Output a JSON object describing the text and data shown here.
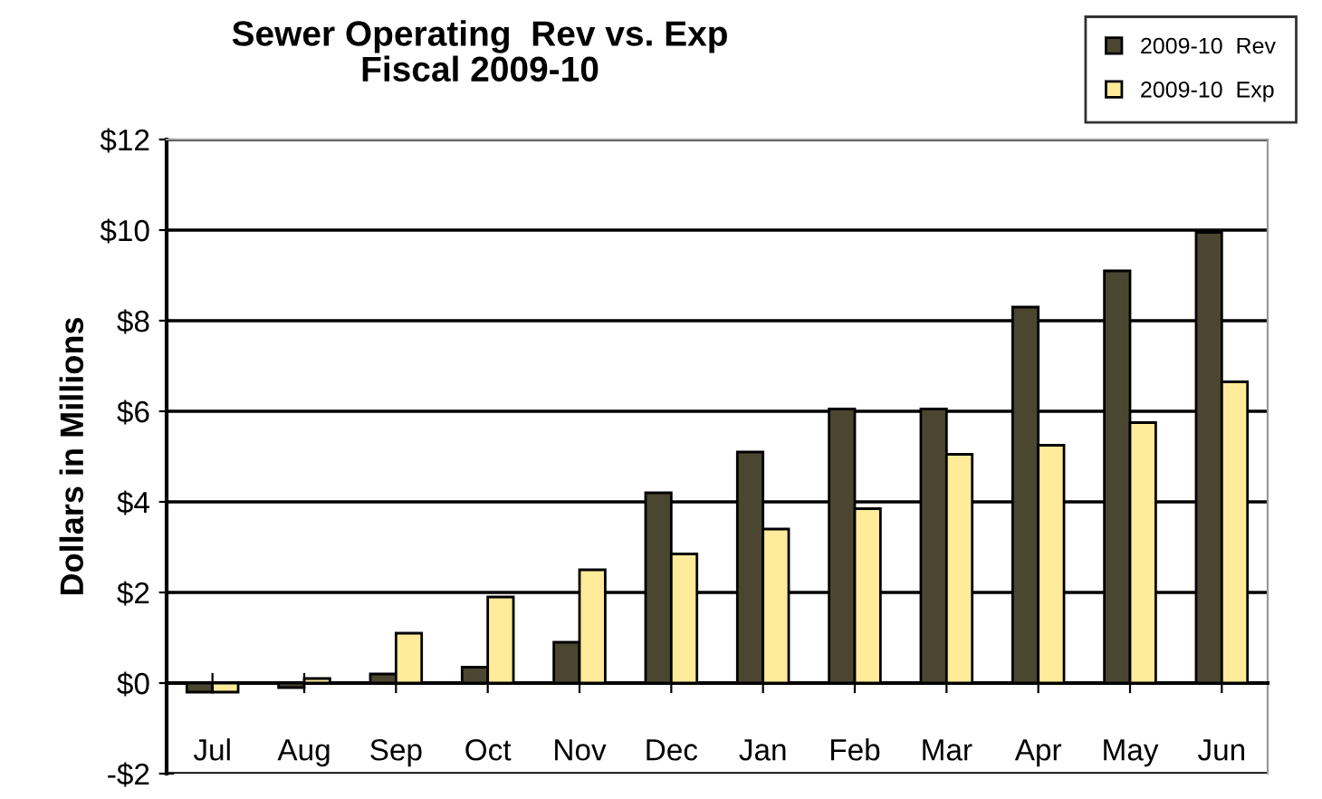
{
  "chart_data": {
    "type": "bar",
    "title": "Sewer Operating  Rev vs. Exp\nFiscal 2009-10",
    "ylabel": "Dollars in Millions",
    "categories": [
      "Jul",
      "Aug",
      "Sep",
      "Oct",
      "Nov",
      "Dec",
      "Jan",
      "Feb",
      "Mar",
      "Apr",
      "May",
      "Jun"
    ],
    "series": [
      {
        "name": "2009-10  Rev",
        "color": "#4b4630",
        "values": [
          -0.2,
          -0.1,
          0.2,
          0.35,
          0.9,
          4.2,
          5.1,
          6.05,
          6.05,
          8.3,
          9.1,
          9.95
        ]
      },
      {
        "name": "2009-10  Exp",
        "color": "#ffeb99",
        "values": [
          -0.2,
          0.1,
          1.1,
          1.9,
          2.5,
          2.85,
          3.4,
          3.85,
          5.05,
          5.25,
          5.75,
          6.65
        ]
      }
    ],
    "ylim": [
      -2,
      12
    ],
    "yticks": [
      {
        "value": -2,
        "label": "-$2"
      },
      {
        "value": 0,
        "label": "$0"
      },
      {
        "value": 2,
        "label": "$2"
      },
      {
        "value": 4,
        "label": "$4"
      },
      {
        "value": 6,
        "label": "$6"
      },
      {
        "value": 8,
        "label": "$8"
      },
      {
        "value": 10,
        "label": "$10"
      },
      {
        "value": 12,
        "label": "$12"
      }
    ],
    "grid": "y",
    "legend": "top right"
  }
}
